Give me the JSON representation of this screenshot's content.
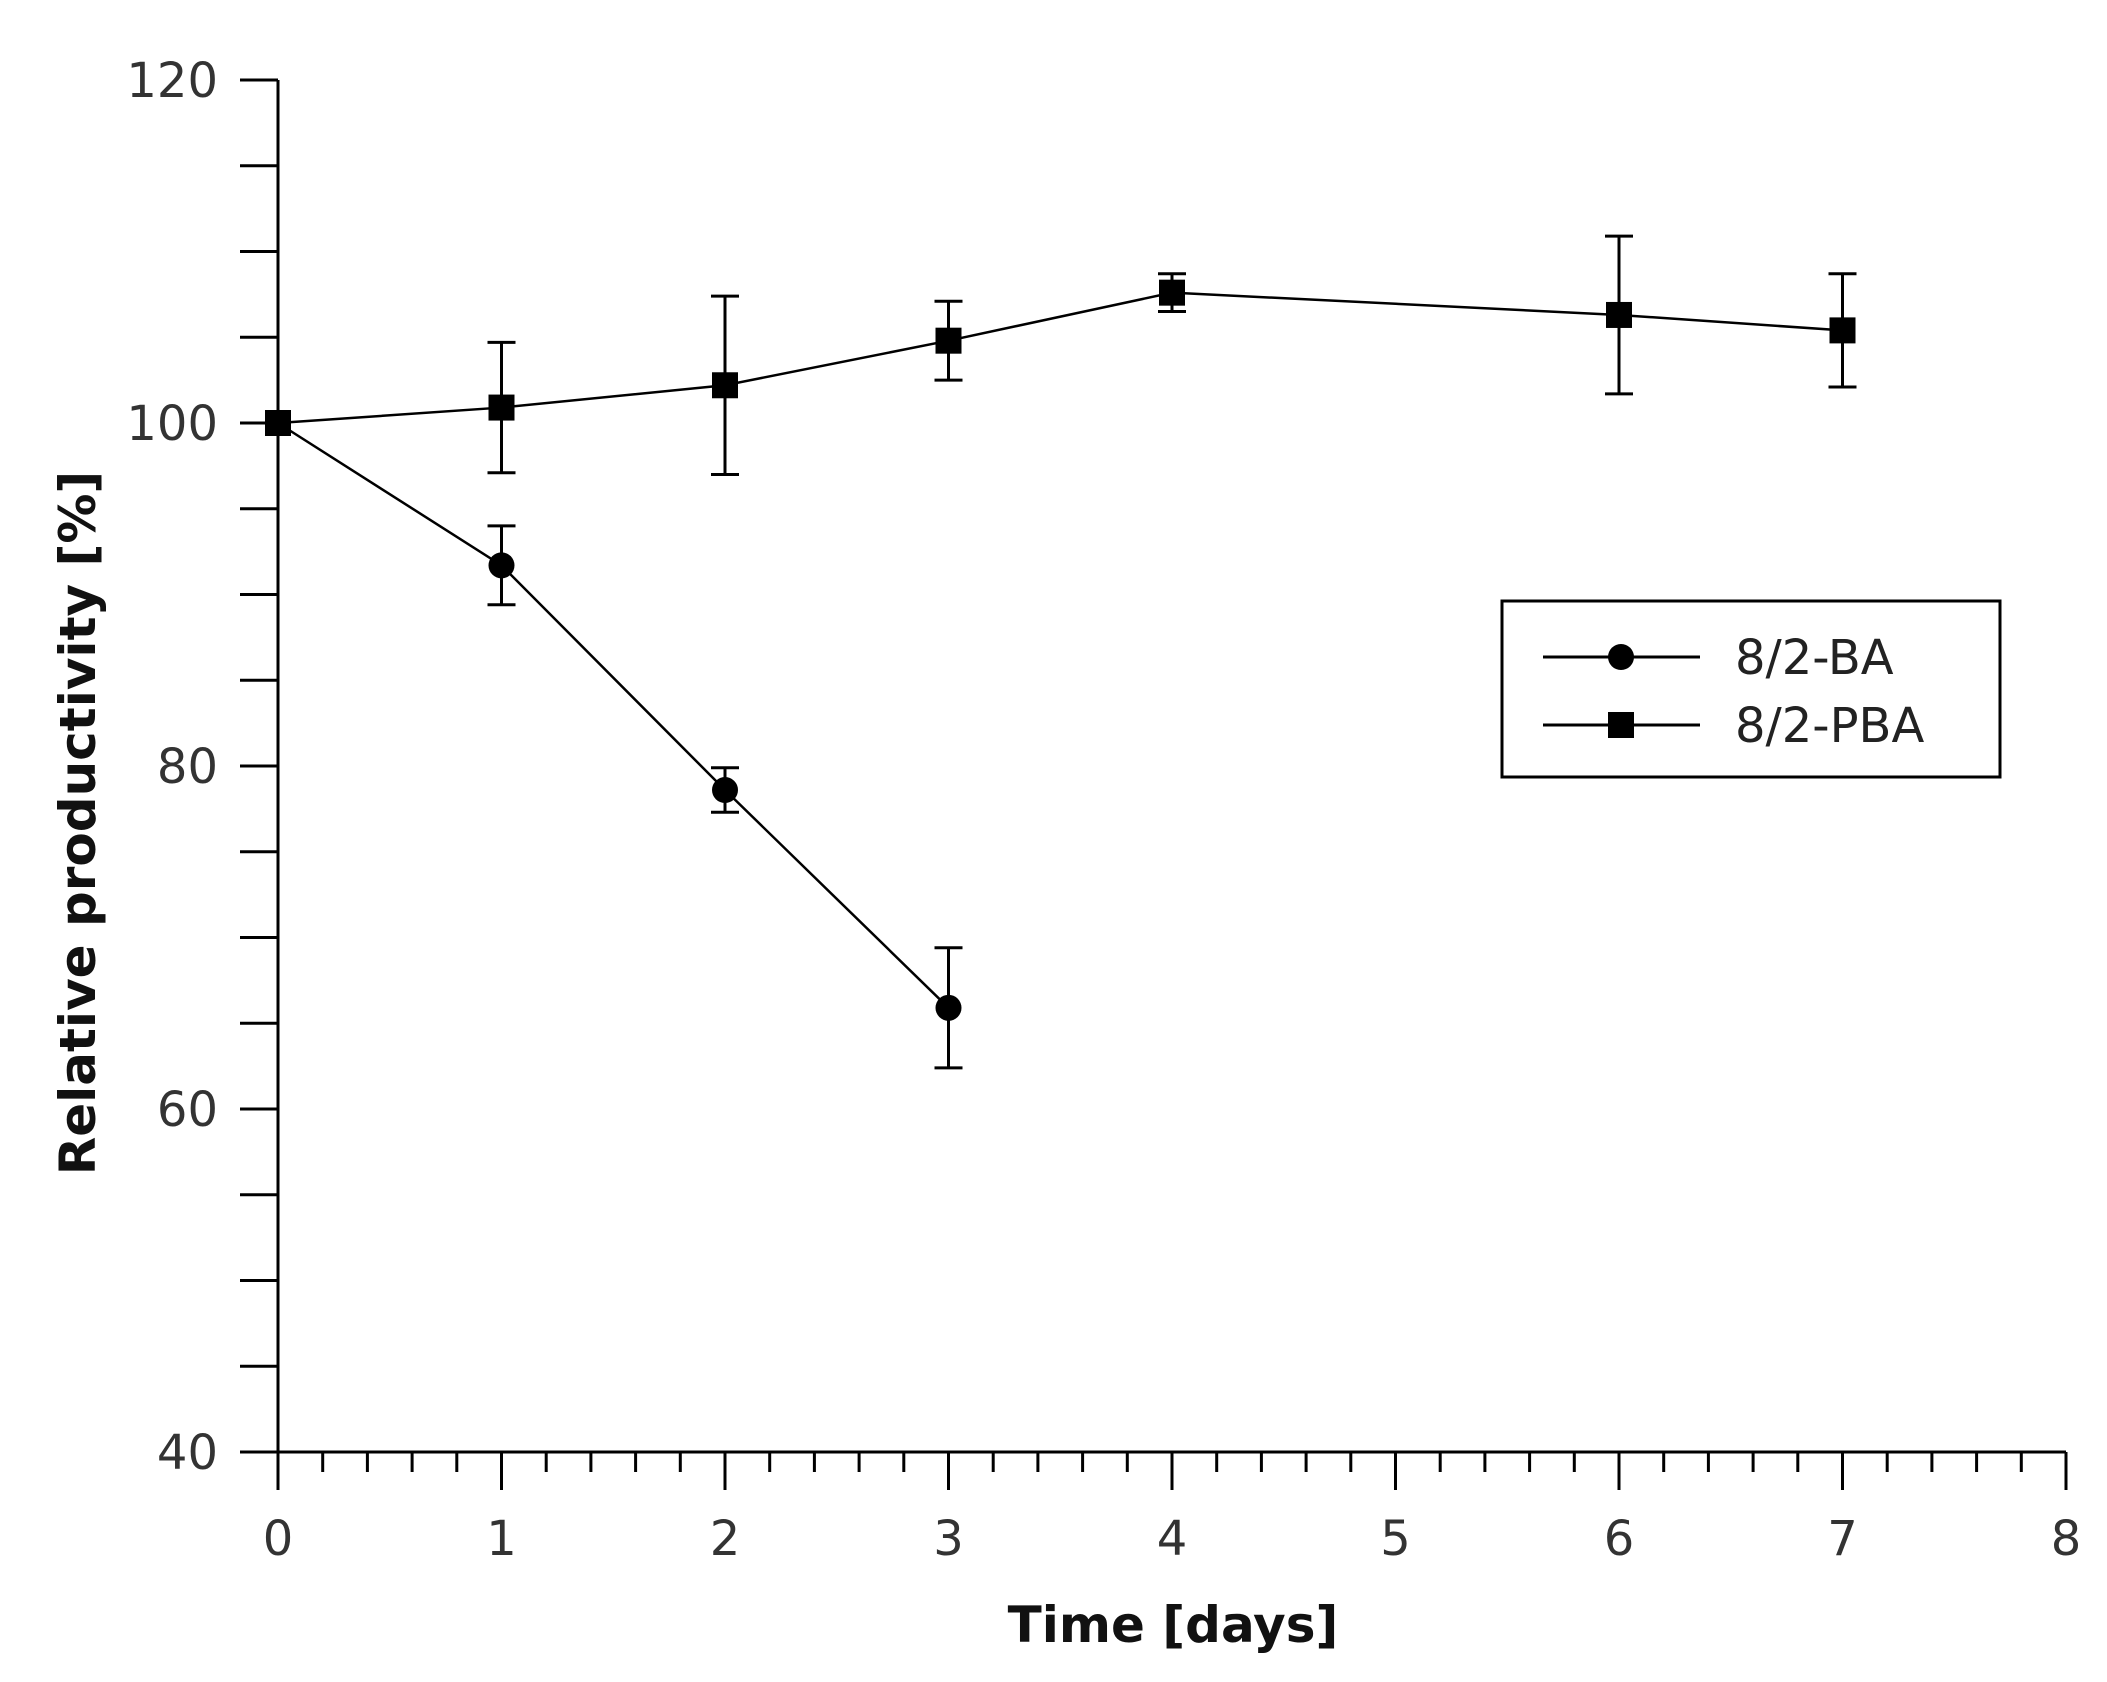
{
  "chart_data": {
    "type": "line",
    "title": "",
    "xlabel": "Time [days]",
    "ylabel": "Relative productivity [%]",
    "xlim": [
      0,
      8
    ],
    "ylim": [
      40,
      120
    ],
    "xticks": [
      0,
      1,
      2,
      3,
      4,
      5,
      6,
      7,
      8
    ],
    "yticks": [
      40,
      60,
      80,
      100,
      120
    ],
    "x_minor_step": 0.2,
    "y_minor_step": 5,
    "grid": false,
    "legend_position": "right",
    "series": [
      {
        "name": "8/2-BA",
        "marker": "circle",
        "x": [
          0,
          1,
          2,
          3
        ],
        "y": [
          100,
          91.7,
          78.6,
          65.9
        ],
        "err": [
          0,
          2.3,
          1.3,
          3.5
        ]
      },
      {
        "name": "8/2-PBA",
        "marker": "square",
        "x": [
          0,
          1,
          2,
          3,
          4,
          6,
          7
        ],
        "y": [
          100,
          100.9,
          102.2,
          104.8,
          107.6,
          106.3,
          105.4
        ],
        "err": [
          0,
          3.8,
          5.2,
          2.3,
          1.1,
          4.6,
          3.3
        ]
      }
    ]
  }
}
